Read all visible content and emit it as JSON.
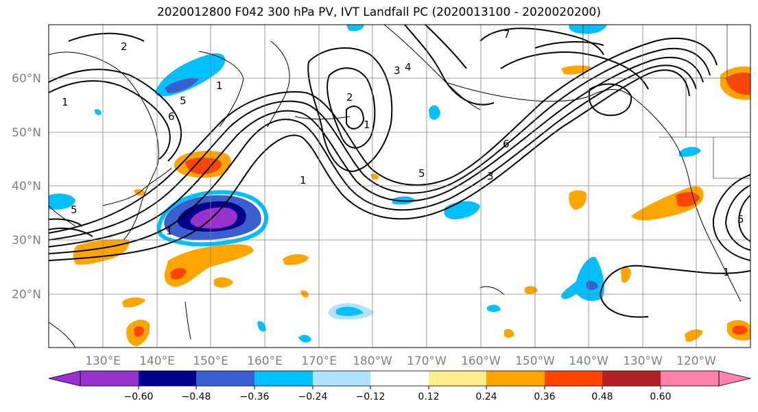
{
  "title": "2020012800 F042 300 hPa PV, IVT Landfall PC (2020013100 - 2020020200)",
  "lat_labels": [
    "60°N",
    "50°N",
    "40°N",
    "30°N",
    "20°N"
  ],
  "lon_labels": [
    "130°E",
    "140°E",
    "150°E",
    "160°E",
    "170°E",
    "180°W",
    "170°W",
    "160°W",
    "150°W",
    "140°W",
    "130°W",
    "120°W"
  ],
  "colorbar": {
    "colors": [
      "#9932cc",
      "#00008b",
      "#3a5fcd",
      "#00bfff",
      "#b0e2ff",
      "#ffffff",
      "#ffec8b",
      "#ffa500",
      "#ff4500",
      "#b22222",
      "#ff82ab"
    ],
    "tick_labels": [
      "−0.60",
      "−0.48",
      "−0.36",
      "−0.24",
      "−0.12",
      "0.12",
      "0.24",
      "0.36",
      "0.48",
      "0.60"
    ]
  },
  "contour_labels": [
    "2",
    "1",
    "5",
    "1",
    "4",
    "6",
    "7",
    "3",
    "2",
    "1",
    "5",
    "3",
    "6",
    "1",
    "5",
    "1",
    "1",
    "5"
  ]
}
